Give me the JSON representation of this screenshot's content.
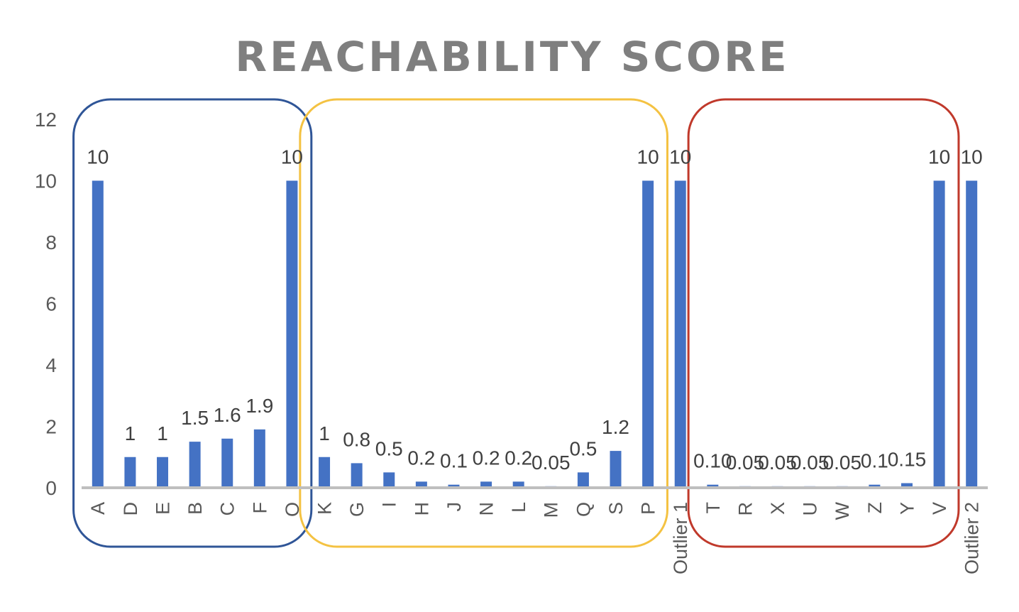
{
  "chart_data": {
    "type": "bar",
    "title": "REACHABILITY SCORE",
    "xlabel": "",
    "ylabel": "",
    "ylim": [
      0,
      12
    ],
    "yticks": [
      "0",
      "2",
      "4",
      "6",
      "8",
      "10",
      "12"
    ],
    "grid": false,
    "legend": "none",
    "categories": [
      "A",
      "D",
      "E",
      "B",
      "C",
      "F",
      "O",
      "K",
      "G",
      "I",
      "H",
      "J",
      "N",
      "L",
      "M",
      "Q",
      "S",
      "P",
      "Outlier 1",
      "T",
      "R",
      "X",
      "U",
      "W",
      "Z",
      "Y",
      "V",
      "Outlier 2"
    ],
    "values": [
      10,
      1,
      1,
      1.5,
      1.6,
      1.9,
      10,
      1,
      0.8,
      0.5,
      0.2,
      0.1,
      0.2,
      0.2,
      0.05,
      0.5,
      1.2,
      10,
      10,
      0.1,
      0.05,
      0.05,
      0.05,
      0.05,
      0.1,
      0.15,
      10,
      10
    ],
    "data_labels": [
      "10",
      "1",
      "1",
      "1.5",
      "1.6",
      "1.9",
      "10",
      "1",
      "0.8",
      "0.5",
      "0.2",
      "0.1",
      "0.2",
      "0.2",
      "0.05",
      "0.5",
      "1.2",
      "10",
      "10",
      "0.10",
      "0.05",
      "0.05",
      "0.05",
      "0.05",
      "0.1",
      "0.15",
      "10",
      "10"
    ],
    "bar_color": "#4472c4",
    "groups": [
      {
        "first": "A",
        "last": "O",
        "color": "#2f5597"
      },
      {
        "first": "K",
        "last": "P",
        "color": "#f4c242"
      },
      {
        "first": "T",
        "last": "V",
        "color": "#c0392b"
      }
    ]
  }
}
